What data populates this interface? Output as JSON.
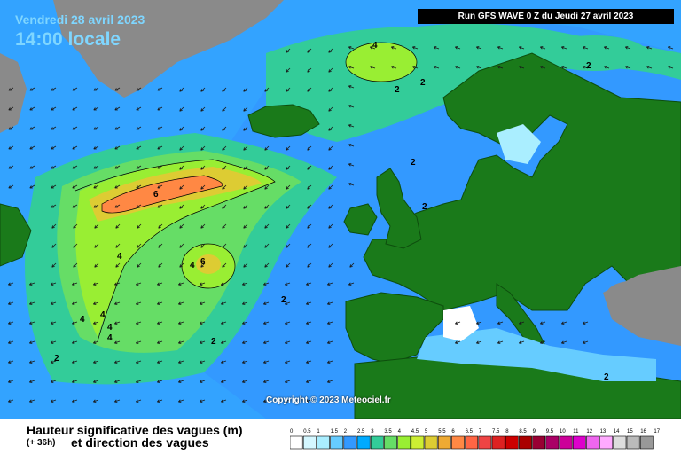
{
  "header": {
    "date": "Vendredi 28 avril 2023",
    "time": "14:00 locale",
    "run": "Run GFS WAVE 0 Z du Jeudi 27 avril 2023"
  },
  "copyright": "Copyright © 2023 Meteociel.fr",
  "legend": {
    "title": "Hauteur significative des vagues (m)",
    "offset": "(+ 36h)",
    "subtitle": "et direction des vagues",
    "ticks": [
      "0",
      "0.5",
      "1",
      "1.5",
      "2",
      "2.5",
      "3",
      "3.5",
      "4",
      "4.5",
      "5",
      "5.5",
      "6",
      "6.5",
      "7",
      "7.5",
      "8",
      "8.5",
      "9",
      "9.5",
      "10",
      "11",
      "12",
      "13",
      "14",
      "15",
      "16",
      "17"
    ],
    "colors": [
      "#ffffff",
      "#d4f7ff",
      "#aaeeff",
      "#66ccff",
      "#3399ff",
      "#00aaff",
      "#33cc99",
      "#66dd66",
      "#99ee33",
      "#ccee33",
      "#ddcc33",
      "#eeaa33",
      "#ff8844",
      "#ff6644",
      "#ee4444",
      "#dd2222",
      "#cc0000",
      "#aa0000",
      "#990033",
      "#aa0066",
      "#cc0099",
      "#dd00cc",
      "#ee66ee",
      "#ffaaff",
      "#dddddd",
      "#bbbbbb",
      "#999999"
    ]
  },
  "contour_labels": [
    {
      "text": "4"
    },
    {
      "text": "2"
    },
    {
      "text": "2"
    },
    {
      "text": "2"
    },
    {
      "text": "2"
    },
    {
      "text": "6"
    },
    {
      "text": "4"
    },
    {
      "text": "6"
    },
    {
      "text": "4"
    },
    {
      "text": "4"
    },
    {
      "text": "4"
    },
    {
      "text": "4"
    },
    {
      "text": "4"
    },
    {
      "text": "2"
    },
    {
      "text": "2"
    },
    {
      "text": "2"
    },
    {
      "text": "2"
    },
    {
      "text": "2"
    }
  ],
  "colors": {
    "land": "#1a7a1a",
    "land_border": "#0d4d0d",
    "greyland": "#8a8a8a",
    "sea_calm": "#3399ff",
    "sea_light": "#66ccff",
    "run_bg": "#000000",
    "title": "#7fd6ff"
  }
}
